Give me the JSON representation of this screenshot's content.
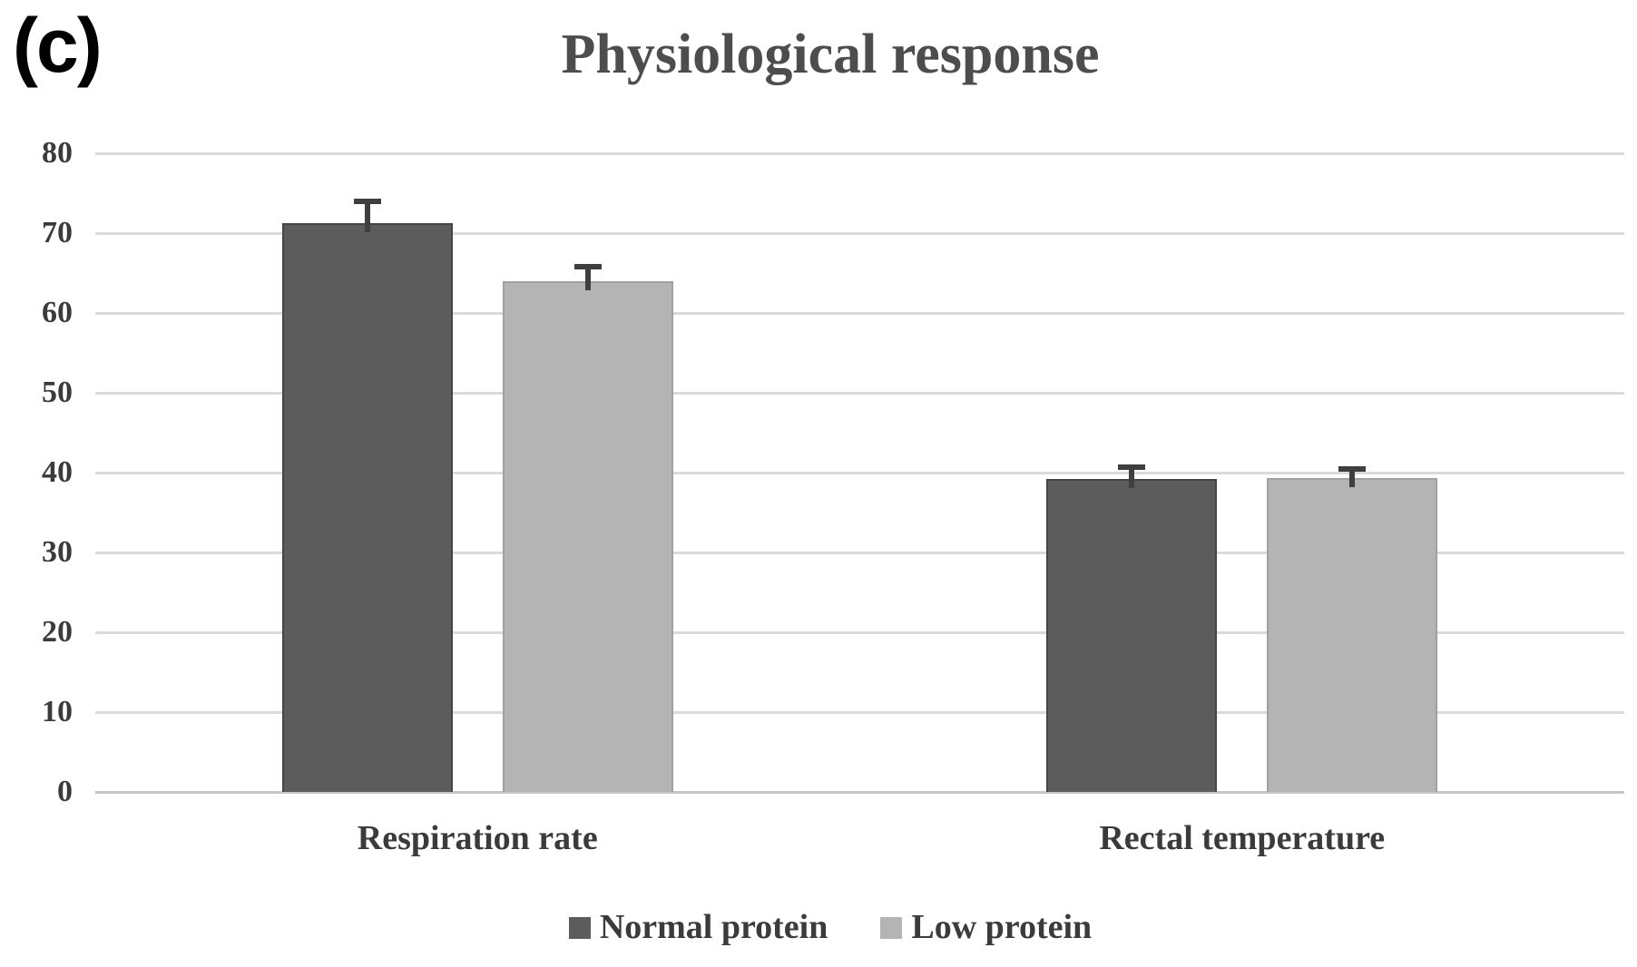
{
  "panel_label": "(c)",
  "chart_data": {
    "type": "bar",
    "title": "Physiological response",
    "categories": [
      "Respiration rate",
      "Rectal temperature"
    ],
    "series": [
      {
        "name": "Normal protein",
        "color": "#5c5c5c",
        "border_color": "#454545",
        "values": [
          71.3,
          39.2
        ],
        "errors_plus": [
          2.7,
          1.5
        ]
      },
      {
        "name": "Low protein",
        "color": "#b4b4b4",
        "border_color": "#a0a0a0",
        "values": [
          64.0,
          39.3
        ],
        "errors_plus": [
          1.8,
          1.2
        ]
      }
    ],
    "ylabel": "",
    "xlabel": "",
    "ylim": [
      0,
      80
    ],
    "y_ticks": [
      0,
      10,
      20,
      30,
      40,
      50,
      60,
      70,
      80
    ],
    "grid": true,
    "legend_position": "bottom",
    "error_bar_color": "#3f3f3f",
    "gridline_color": "#dadada",
    "title_color": "#4d4d4d",
    "label_color": "#3b3b3b"
  }
}
